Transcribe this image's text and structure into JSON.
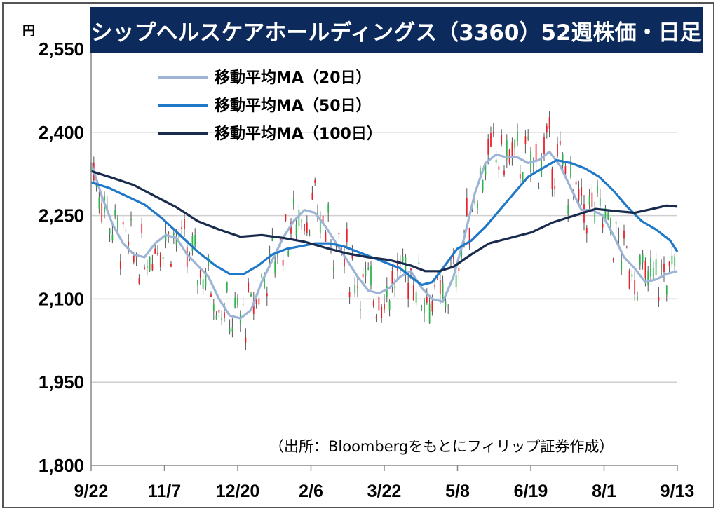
{
  "title": "シップヘルスケアホールディングス（3360）52週株価・日足",
  "unit_label": "円",
  "source_note": "（出所：Bloombergをもとにフィリップ証券作成）",
  "chart_data": {
    "type": "candlestick",
    "y_ticks": [
      "2,550",
      "2,400",
      "2,250",
      "2,100",
      "1,950",
      "1,800"
    ],
    "y_tick_values": [
      2550,
      2400,
      2250,
      2100,
      1950,
      1800
    ],
    "ylim": [
      1800,
      2550
    ],
    "x_ticks": [
      "9/22",
      "11/7",
      "12/20",
      "2/6",
      "3/22",
      "5/8",
      "6/19",
      "8/1",
      "9/13"
    ],
    "grid": "horizontal",
    "legend_placement": "top-left",
    "colors": {
      "up": "#e8202a",
      "down": "#2db34a",
      "ma20": "#9db4d6",
      "ma50": "#1f78c8",
      "ma100": "#1a2c4e",
      "title_bg": "#0d2a5c"
    },
    "series": [
      {
        "name": "移動平均MA（20日）",
        "points": [
          [
            0,
            2345
          ],
          [
            6,
            2285
          ],
          [
            12,
            2235
          ],
          [
            18,
            2200
          ],
          [
            24,
            2180
          ],
          [
            30,
            2175
          ],
          [
            36,
            2200
          ],
          [
            42,
            2215
          ],
          [
            48,
            2210
          ],
          [
            54,
            2180
          ],
          [
            60,
            2160
          ],
          [
            66,
            2140
          ],
          [
            72,
            2100
          ],
          [
            78,
            2070
          ],
          [
            84,
            2065
          ],
          [
            90,
            2080
          ],
          [
            96,
            2130
          ],
          [
            102,
            2170
          ],
          [
            108,
            2210
          ],
          [
            114,
            2240
          ],
          [
            120,
            2260
          ],
          [
            126,
            2255
          ],
          [
            132,
            2230
          ],
          [
            138,
            2200
          ],
          [
            144,
            2170
          ],
          [
            150,
            2140
          ],
          [
            156,
            2115
          ],
          [
            162,
            2110
          ],
          [
            168,
            2120
          ],
          [
            174,
            2140
          ],
          [
            180,
            2150
          ],
          [
            186,
            2120
          ],
          [
            192,
            2100
          ],
          [
            198,
            2095
          ],
          [
            204,
            2140
          ],
          [
            210,
            2210
          ],
          [
            216,
            2290
          ],
          [
            222,
            2345
          ],
          [
            228,
            2360
          ],
          [
            234,
            2355
          ],
          [
            240,
            2355
          ],
          [
            246,
            2345
          ],
          [
            252,
            2350
          ],
          [
            258,
            2365
          ],
          [
            264,
            2340
          ],
          [
            270,
            2300
          ],
          [
            276,
            2260
          ],
          [
            282,
            2260
          ],
          [
            288,
            2250
          ],
          [
            294,
            2215
          ],
          [
            300,
            2175
          ],
          [
            306,
            2155
          ],
          [
            312,
            2130
          ],
          [
            318,
            2135
          ],
          [
            324,
            2145
          ],
          [
            330,
            2150
          ]
        ]
      },
      {
        "name": "移動平均MA（50日）",
        "points": [
          [
            0,
            2310
          ],
          [
            10,
            2300
          ],
          [
            20,
            2285
          ],
          [
            30,
            2270
          ],
          [
            40,
            2245
          ],
          [
            50,
            2215
          ],
          [
            60,
            2185
          ],
          [
            70,
            2160
          ],
          [
            78,
            2145
          ],
          [
            86,
            2145
          ],
          [
            94,
            2160
          ],
          [
            102,
            2180
          ],
          [
            110,
            2190
          ],
          [
            118,
            2195
          ],
          [
            126,
            2200
          ],
          [
            134,
            2200
          ],
          [
            142,
            2195
          ],
          [
            150,
            2185
          ],
          [
            158,
            2175
          ],
          [
            166,
            2165
          ],
          [
            174,
            2155
          ],
          [
            180,
            2140
          ],
          [
            186,
            2125
          ],
          [
            192,
            2130
          ],
          [
            198,
            2155
          ],
          [
            206,
            2190
          ],
          [
            214,
            2205
          ],
          [
            222,
            2230
          ],
          [
            230,
            2260
          ],
          [
            238,
            2290
          ],
          [
            246,
            2320
          ],
          [
            254,
            2335
          ],
          [
            262,
            2350
          ],
          [
            270,
            2345
          ],
          [
            278,
            2335
          ],
          [
            286,
            2320
          ],
          [
            294,
            2295
          ],
          [
            302,
            2265
          ],
          [
            310,
            2240
          ],
          [
            318,
            2225
          ],
          [
            326,
            2205
          ],
          [
            330,
            2185
          ]
        ]
      },
      {
        "name": "移動平均MA（100日）",
        "points": [
          [
            0,
            2330
          ],
          [
            12,
            2318
          ],
          [
            24,
            2305
          ],
          [
            36,
            2285
          ],
          [
            48,
            2265
          ],
          [
            60,
            2240
          ],
          [
            72,
            2225
          ],
          [
            84,
            2212
          ],
          [
            96,
            2215
          ],
          [
            108,
            2210
          ],
          [
            120,
            2203
          ],
          [
            132,
            2192
          ],
          [
            144,
            2182
          ],
          [
            156,
            2175
          ],
          [
            168,
            2170
          ],
          [
            180,
            2160
          ],
          [
            188,
            2150
          ],
          [
            196,
            2150
          ],
          [
            204,
            2158
          ],
          [
            214,
            2180
          ],
          [
            224,
            2200
          ],
          [
            236,
            2210
          ],
          [
            248,
            2220
          ],
          [
            260,
            2238
          ],
          [
            272,
            2250
          ],
          [
            284,
            2262
          ],
          [
            296,
            2258
          ],
          [
            306,
            2255
          ],
          [
            316,
            2262
          ],
          [
            324,
            2268
          ],
          [
            330,
            2266
          ]
        ]
      }
    ]
  }
}
